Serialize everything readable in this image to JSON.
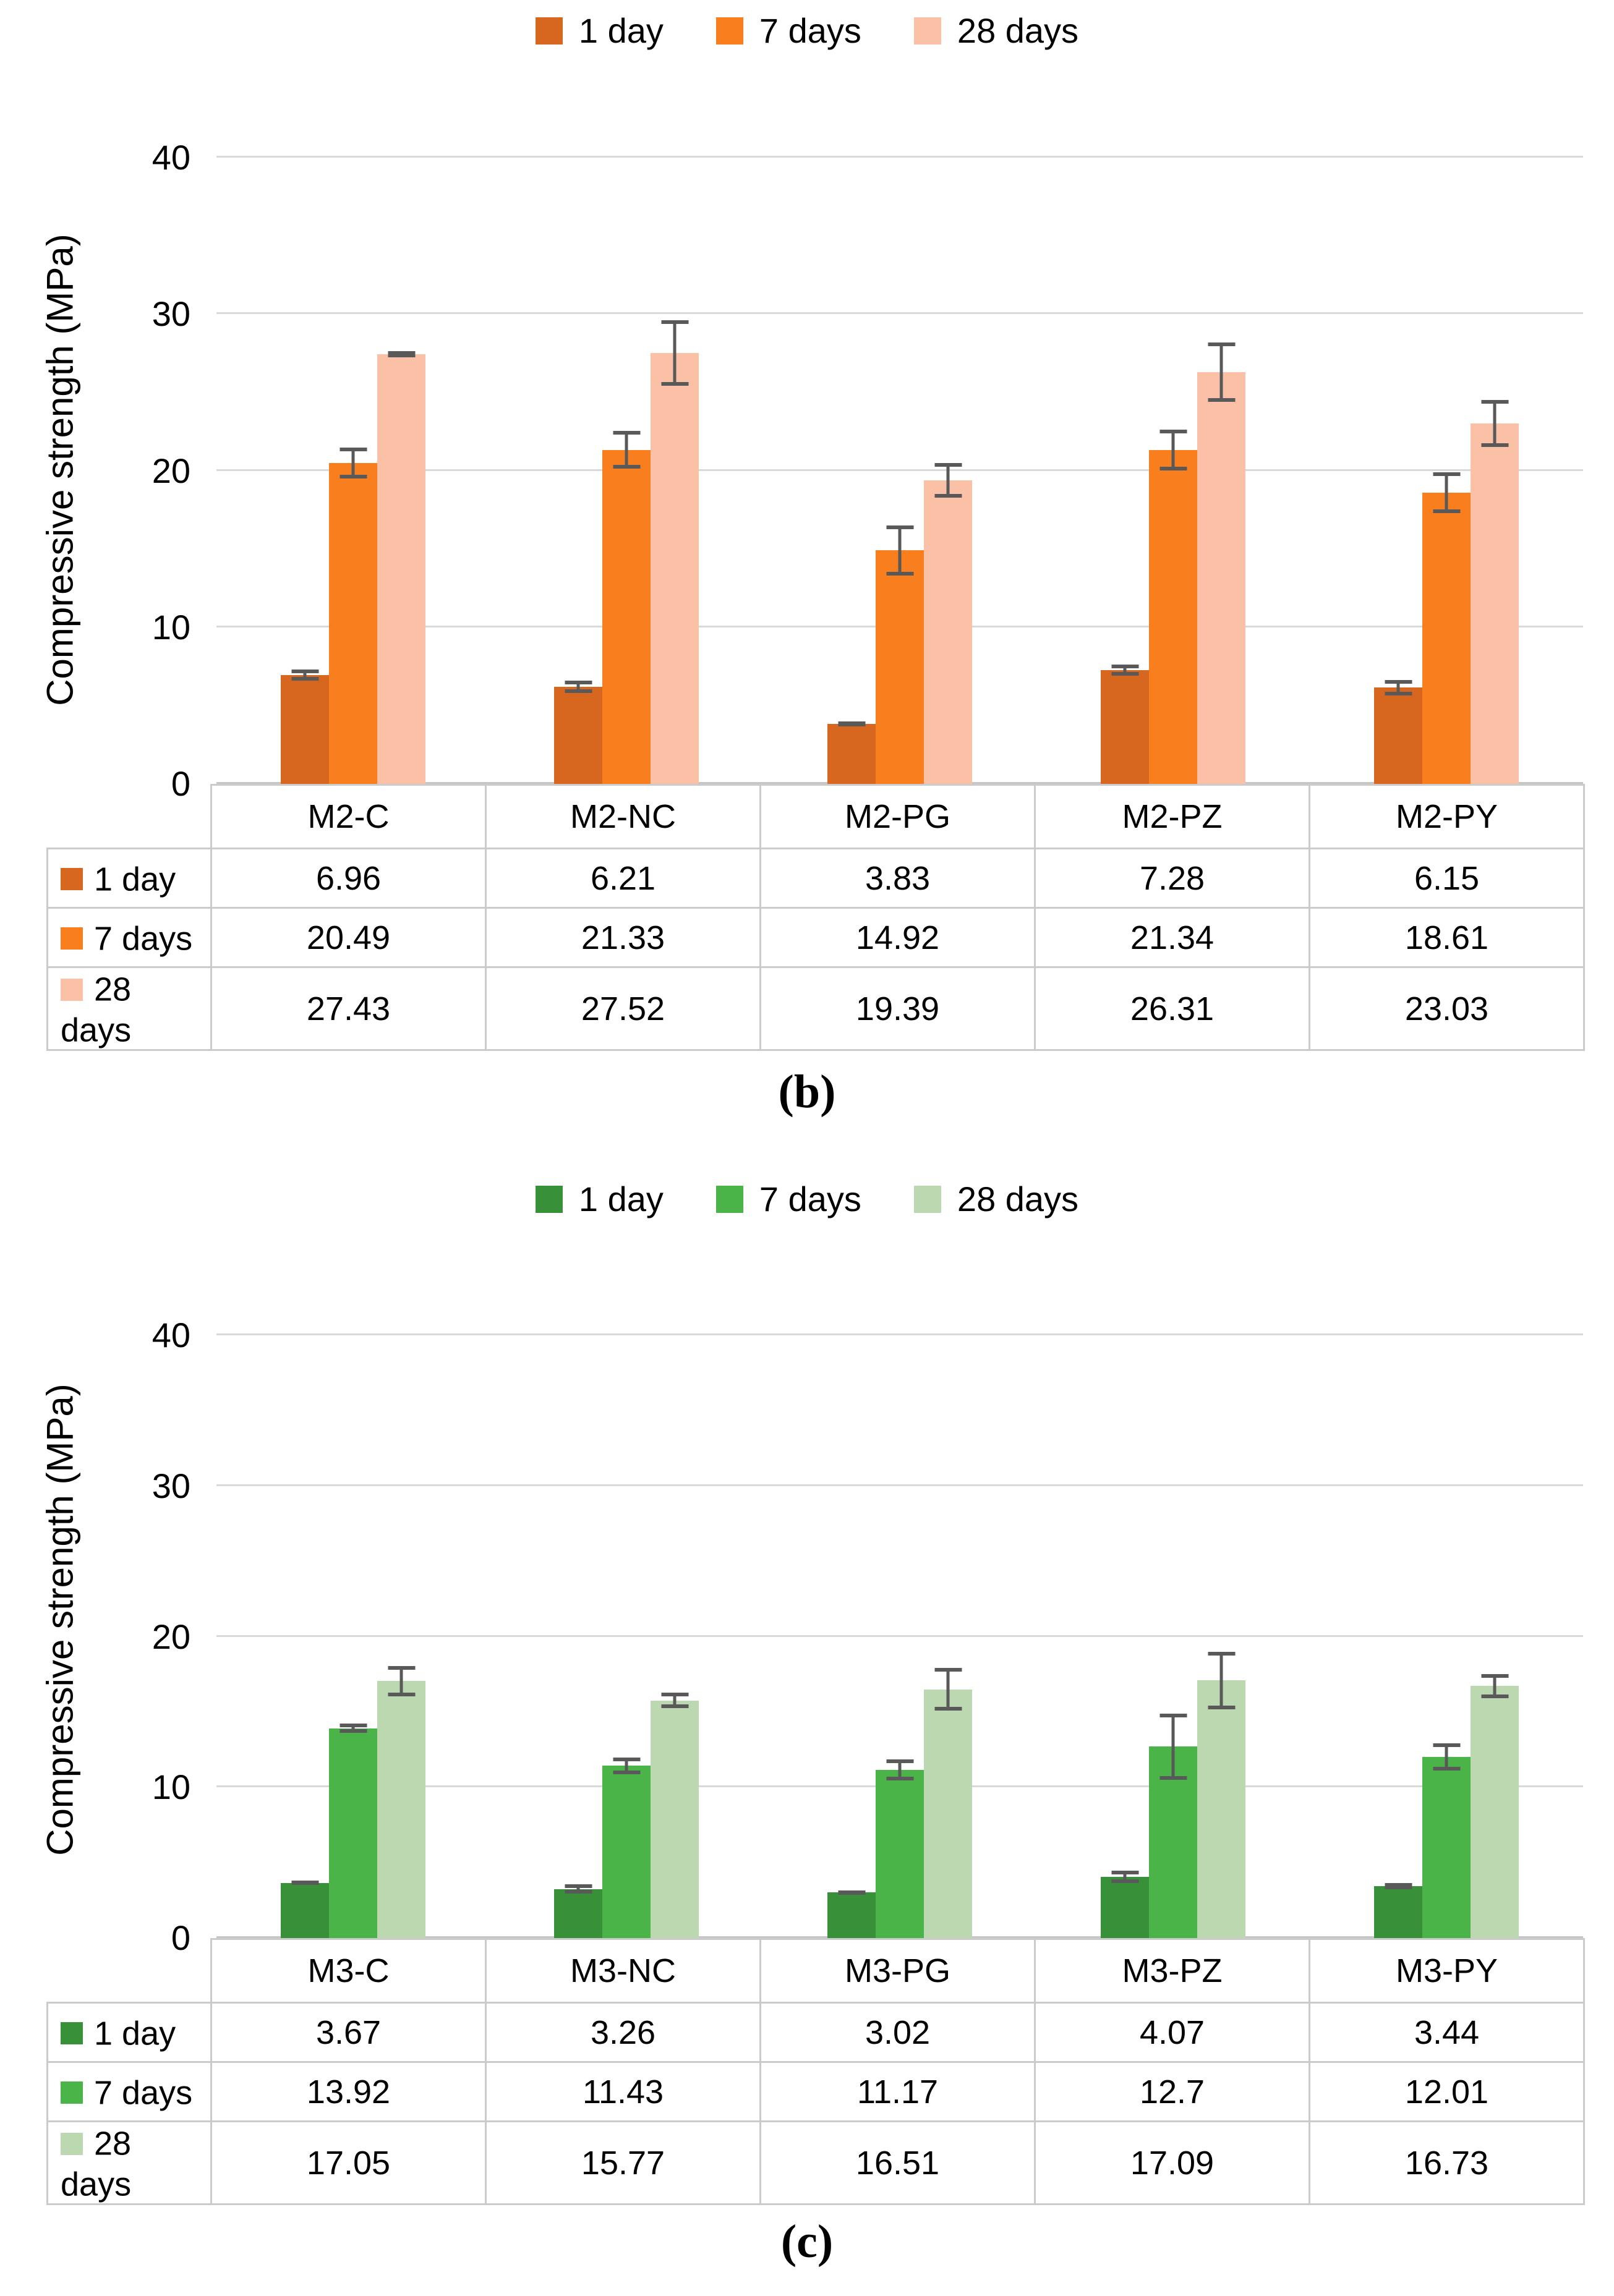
{
  "chart_data": [
    {
      "id": "b",
      "type": "bar",
      "caption": "(b)",
      "ylabel": "Compressive strength (MPa)",
      "ylim": [
        0,
        40
      ],
      "yticks": [
        0,
        10,
        20,
        30,
        40
      ],
      "grid": true,
      "legend_position": "top",
      "grid_color": "#D9D9D9",
      "error_bar_color": "#595959",
      "categories": [
        "M2-C",
        "M2-NC",
        "M2-PG",
        "M2-PZ",
        "M2-PY"
      ],
      "series": [
        {
          "name": "1 day",
          "color": "#D7671E",
          "values": [
            6.96,
            6.21,
            3.83,
            7.28,
            6.15
          ],
          "errors": [
            0.35,
            0.4,
            0.15,
            0.35,
            0.5
          ]
        },
        {
          "name": "7 days",
          "color": "#F97E1D",
          "values": [
            20.49,
            21.33,
            14.92,
            21.34,
            18.61
          ],
          "errors": [
            1.0,
            1.2,
            1.6,
            1.3,
            1.3
          ]
        },
        {
          "name": "28 days",
          "color": "#FAC1A7",
          "values": [
            27.43,
            27.52,
            19.39,
            26.31,
            23.03
          ],
          "errors": [
            0.2,
            2.1,
            1.1,
            1.9,
            1.5
          ]
        }
      ],
      "table_values": [
        [
          "6.96",
          "6.21",
          "3.83",
          "7.28",
          "6.15"
        ],
        [
          "20.49",
          "21.33",
          "14.92",
          "21.34",
          "18.61"
        ],
        [
          "27.43",
          "27.52",
          "19.39",
          "26.31",
          "23.03"
        ]
      ]
    },
    {
      "id": "c",
      "type": "bar",
      "caption": "(c)",
      "ylabel": "Compressive strength (MPa)",
      "ylim": [
        0,
        40
      ],
      "yticks": [
        0,
        10,
        20,
        30,
        40
      ],
      "grid": true,
      "legend_position": "top",
      "grid_color": "#D9D9D9",
      "error_bar_color": "#595959",
      "categories": [
        "M3-C",
        "M3-NC",
        "M3-PG",
        "M3-PZ",
        "M3-PY"
      ],
      "series": [
        {
          "name": "1 day",
          "color": "#389038",
          "values": [
            3.67,
            3.26,
            3.02,
            4.07,
            3.44
          ],
          "errors": [
            0.15,
            0.3,
            0.15,
            0.4,
            0.2
          ]
        },
        {
          "name": "7 days",
          "color": "#4BB449",
          "values": [
            13.92,
            11.43,
            11.17,
            12.7,
            12.01
          ],
          "errors": [
            0.3,
            0.55,
            0.7,
            2.2,
            0.9
          ]
        },
        {
          "name": "28 days",
          "color": "#BBD8B0",
          "values": [
            17.05,
            15.77,
            16.51,
            17.09,
            16.73
          ],
          "errors": [
            1.0,
            0.5,
            1.4,
            1.9,
            0.8
          ]
        }
      ],
      "table_values": [
        [
          "3.67",
          "3.26",
          "3.02",
          "4.07",
          "3.44"
        ],
        [
          "13.92",
          "11.43",
          "11.17",
          "12.7",
          "12.01"
        ],
        [
          "17.05",
          "15.77",
          "16.51",
          "17.09",
          "16.73"
        ]
      ]
    }
  ]
}
